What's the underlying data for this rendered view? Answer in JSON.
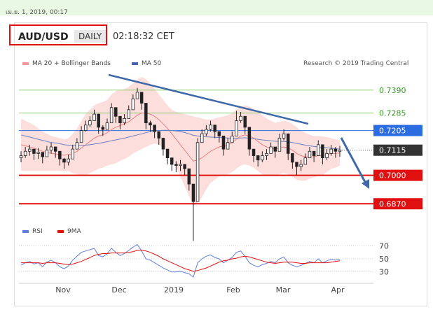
{
  "header": {
    "timestamp": "เม.ย. 1, 2019, 00:17",
    "symbol": "AUD/USD",
    "period": "DAILY",
    "time": "02:18:32 CET",
    "copyright": "Research © 2019 Trading Central"
  },
  "colors": {
    "bollinger": "#f29a9a",
    "ma50": "#4a64b0",
    "support": "#e01010",
    "resistance_green": "#8fcf6e",
    "pivot_blue": "#2b6de0",
    "price_box": "#333333",
    "trendline": "#3e68a8",
    "rsi": "#5f7fd6",
    "rsi_ma": "#e01010"
  },
  "chart_data": [
    {
      "type": "line",
      "title": "",
      "legend": [
        {
          "name": "MA 20 + Bollinger Bands",
          "color": "#f29a9a"
        },
        {
          "name": "MA 50",
          "color": "#4a64b0"
        }
      ],
      "x_ticks": [
        "Nov",
        "Dec",
        "2019",
        "Feb",
        "Mar",
        "Apr"
      ],
      "ylim": [
        0.681,
        0.745
      ],
      "price_levels": [
        {
          "value": "0.7390",
          "kind": "resistance",
          "color": "#8fcf6e"
        },
        {
          "value": "0.7285",
          "kind": "resistance",
          "color": "#8fcf6e"
        },
        {
          "value": "0.7205",
          "kind": "pivot",
          "color": "#2b6de0"
        },
        {
          "value": "0.7115",
          "kind": "last",
          "color": "#333333"
        },
        {
          "value": "0.7000",
          "kind": "support",
          "color": "#e01010"
        },
        {
          "value": "0.6870",
          "kind": "support",
          "color": "#e01010"
        }
      ],
      "close": [
        0.709,
        0.711,
        0.712,
        0.71,
        0.7105,
        0.7085,
        0.7115,
        0.713,
        0.711,
        0.7075,
        0.706,
        0.7075,
        0.712,
        0.715,
        0.7205,
        0.723,
        0.725,
        0.728,
        0.722,
        0.721,
        0.724,
        0.731,
        0.727,
        0.724,
        0.726,
        0.73,
        0.735,
        0.738,
        0.733,
        0.724,
        0.723,
        0.72,
        0.717,
        0.712,
        0.708,
        0.705,
        0.7045,
        0.705,
        0.703,
        0.696,
        0.688,
        0.715,
        0.719,
        0.721,
        0.723,
        0.72,
        0.718,
        0.712,
        0.715,
        0.718,
        0.725,
        0.727,
        0.722,
        0.712,
        0.709,
        0.707,
        0.709,
        0.71,
        0.713,
        0.711,
        0.717,
        0.719,
        0.71,
        0.706,
        0.704,
        0.705,
        0.708,
        0.711,
        0.709,
        0.714,
        0.708,
        0.71,
        0.712,
        0.711,
        0.7115
      ],
      "high": [
        0.711,
        0.713,
        0.714,
        0.712,
        0.7125,
        0.7105,
        0.7135,
        0.715,
        0.713,
        0.7095,
        0.708,
        0.7095,
        0.714,
        0.717,
        0.7225,
        0.725,
        0.727,
        0.73,
        0.724,
        0.723,
        0.726,
        0.733,
        0.729,
        0.726,
        0.728,
        0.732,
        0.737,
        0.74,
        0.735,
        0.726,
        0.725,
        0.722,
        0.719,
        0.714,
        0.71,
        0.707,
        0.7065,
        0.707,
        0.705,
        0.698,
        0.69,
        0.717,
        0.721,
        0.723,
        0.725,
        0.722,
        0.72,
        0.714,
        0.717,
        0.72,
        0.7295,
        0.729,
        0.724,
        0.714,
        0.711,
        0.709,
        0.711,
        0.712,
        0.715,
        0.713,
        0.719,
        0.721,
        0.712,
        0.708,
        0.706,
        0.707,
        0.71,
        0.713,
        0.711,
        0.716,
        0.71,
        0.712,
        0.714,
        0.713,
        0.7135
      ],
      "low": [
        0.706,
        0.708,
        0.709,
        0.707,
        0.7075,
        0.7055,
        0.7085,
        0.71,
        0.708,
        0.7045,
        0.703,
        0.7045,
        0.709,
        0.712,
        0.7175,
        0.72,
        0.722,
        0.725,
        0.719,
        0.718,
        0.721,
        0.728,
        0.724,
        0.721,
        0.723,
        0.727,
        0.732,
        0.735,
        0.73,
        0.721,
        0.72,
        0.717,
        0.714,
        0.709,
        0.705,
        0.702,
        0.7015,
        0.702,
        0.7,
        0.693,
        0.67,
        0.712,
        0.716,
        0.718,
        0.72,
        0.717,
        0.715,
        0.709,
        0.712,
        0.715,
        0.722,
        0.724,
        0.719,
        0.709,
        0.706,
        0.704,
        0.706,
        0.707,
        0.71,
        0.708,
        0.714,
        0.716,
        0.707,
        0.703,
        0.7,
        0.702,
        0.705,
        0.708,
        0.706,
        0.711,
        0.705,
        0.707,
        0.709,
        0.708,
        0.7085
      ],
      "ma20": [
        0.714,
        0.7135,
        0.713,
        0.7125,
        0.7118,
        0.711,
        0.7105,
        0.71,
        0.7098,
        0.7095,
        0.7092,
        0.7095,
        0.71,
        0.711,
        0.7125,
        0.714,
        0.7155,
        0.717,
        0.718,
        0.7185,
        0.7195,
        0.721,
        0.722,
        0.7228,
        0.7235,
        0.7245,
        0.726,
        0.7275,
        0.7285,
        0.7285,
        0.728,
        0.727,
        0.7255,
        0.7235,
        0.7215,
        0.719,
        0.7165,
        0.714,
        0.7115,
        0.709,
        0.7065,
        0.707,
        0.708,
        0.7095,
        0.711,
        0.712,
        0.713,
        0.7135,
        0.714,
        0.715,
        0.7165,
        0.718,
        0.7185,
        0.718,
        0.717,
        0.7155,
        0.714,
        0.713,
        0.7125,
        0.712,
        0.7125,
        0.713,
        0.7125,
        0.7115,
        0.71,
        0.709,
        0.7085,
        0.7085,
        0.7085,
        0.709,
        0.709,
        0.7095,
        0.71,
        0.71,
        0.7102
      ],
      "bb_upper": [
        0.726,
        0.725,
        0.724,
        0.723,
        0.7215,
        0.72,
        0.719,
        0.718,
        0.7175,
        0.717,
        0.7165,
        0.717,
        0.719,
        0.7215,
        0.725,
        0.728,
        0.73,
        0.732,
        0.733,
        0.7335,
        0.7345,
        0.737,
        0.7385,
        0.739,
        0.7395,
        0.7405,
        0.742,
        0.744,
        0.745,
        0.744,
        0.742,
        0.7395,
        0.737,
        0.7345,
        0.732,
        0.73,
        0.729,
        0.7285,
        0.728,
        0.7275,
        0.727,
        0.7265,
        0.726,
        0.7255,
        0.7255,
        0.726,
        0.7265,
        0.727,
        0.7275,
        0.7285,
        0.73,
        0.7315,
        0.732,
        0.7315,
        0.7305,
        0.729,
        0.7275,
        0.726,
        0.725,
        0.724,
        0.7245,
        0.725,
        0.7245,
        0.7235,
        0.722,
        0.7205,
        0.7195,
        0.7185,
        0.718,
        0.718,
        0.7178,
        0.7175,
        0.717,
        0.7165,
        0.716
      ],
      "bb_lower": [
        0.702,
        0.702,
        0.702,
        0.702,
        0.7021,
        0.702,
        0.702,
        0.702,
        0.7021,
        0.702,
        0.7019,
        0.702,
        0.701,
        0.7005,
        0.7,
        0.7,
        0.701,
        0.702,
        0.703,
        0.7035,
        0.7045,
        0.705,
        0.7055,
        0.7066,
        0.7075,
        0.7085,
        0.71,
        0.711,
        0.712,
        0.713,
        0.714,
        0.7145,
        0.714,
        0.7125,
        0.711,
        0.708,
        0.704,
        0.6995,
        0.695,
        0.6905,
        0.686,
        0.6875,
        0.69,
        0.6935,
        0.6965,
        0.698,
        0.6995,
        0.7,
        0.7005,
        0.7015,
        0.703,
        0.7045,
        0.705,
        0.7045,
        0.7035,
        0.702,
        0.7005,
        0.7,
        0.7,
        0.7,
        0.7005,
        0.701,
        0.7005,
        0.6995,
        0.698,
        0.6975,
        0.6975,
        0.6985,
        0.699,
        0.7,
        0.7002,
        0.7015,
        0.703,
        0.7035,
        0.7044
      ],
      "ma50": [
        0.7185,
        0.718,
        0.7175,
        0.717,
        0.7165,
        0.716,
        0.7155,
        0.715,
        0.7148,
        0.7145,
        0.714,
        0.7138,
        0.7136,
        0.7135,
        0.7136,
        0.7138,
        0.714,
        0.7143,
        0.7146,
        0.715,
        0.7154,
        0.7158,
        0.7162,
        0.7166,
        0.717,
        0.7175,
        0.718,
        0.7185,
        0.719,
        0.7195,
        0.72,
        0.7203,
        0.7205,
        0.7206,
        0.7206,
        0.7205,
        0.7203,
        0.72,
        0.7196,
        0.719,
        0.7183,
        0.718,
        0.7178,
        0.7176,
        0.7175,
        0.7174,
        0.7173,
        0.7172,
        0.7171,
        0.717,
        0.717,
        0.7171,
        0.7172,
        0.717,
        0.7168,
        0.7165,
        0.7162,
        0.716,
        0.7158,
        0.7156,
        0.7155,
        0.7155,
        0.7153,
        0.715,
        0.7146,
        0.7142,
        0.7138,
        0.7135,
        0.7132,
        0.713,
        0.7128,
        0.7126,
        0.7124,
        0.7122,
        0.712
      ]
    },
    {
      "type": "line",
      "legend": [
        {
          "name": "RSI",
          "color": "#5f7fd6"
        },
        {
          "name": "9MA",
          "color": "#e01010"
        }
      ],
      "y_ticks": [
        "70",
        "50",
        "30"
      ],
      "ylim": [
        20,
        80
      ],
      "rsi": [
        40,
        44,
        46,
        42,
        44,
        38,
        45,
        48,
        44,
        38,
        35,
        39,
        48,
        54,
        60,
        62,
        64,
        66,
        55,
        53,
        58,
        66,
        60,
        55,
        58,
        63,
        68,
        72,
        62,
        50,
        48,
        44,
        40,
        36,
        33,
        30,
        30,
        31,
        29,
        27,
        22,
        44,
        50,
        54,
        56,
        52,
        50,
        44,
        48,
        52,
        60,
        62,
        54,
        44,
        40,
        38,
        41,
        43,
        46,
        44,
        50,
        53,
        44,
        40,
        38,
        40,
        43,
        46,
        44,
        50,
        44,
        47,
        49,
        48,
        49
      ],
      "rsi_ma": [
        44,
        44,
        44,
        44,
        44,
        43,
        44,
        44,
        44,
        43,
        42,
        41,
        42,
        44,
        46,
        49,
        52,
        55,
        57,
        58,
        58,
        59,
        59,
        59,
        59,
        60,
        61,
        63,
        63,
        62,
        60,
        57,
        54,
        50,
        47,
        44,
        41,
        38,
        35,
        33,
        31,
        32,
        34,
        36,
        39,
        42,
        45,
        47,
        48,
        50,
        51,
        53,
        54,
        53,
        51,
        49,
        47,
        45,
        44,
        43,
        44,
        45,
        45,
        45,
        44,
        43,
        43,
        44,
        44,
        44,
        44,
        44,
        45,
        46,
        47
      ]
    }
  ]
}
